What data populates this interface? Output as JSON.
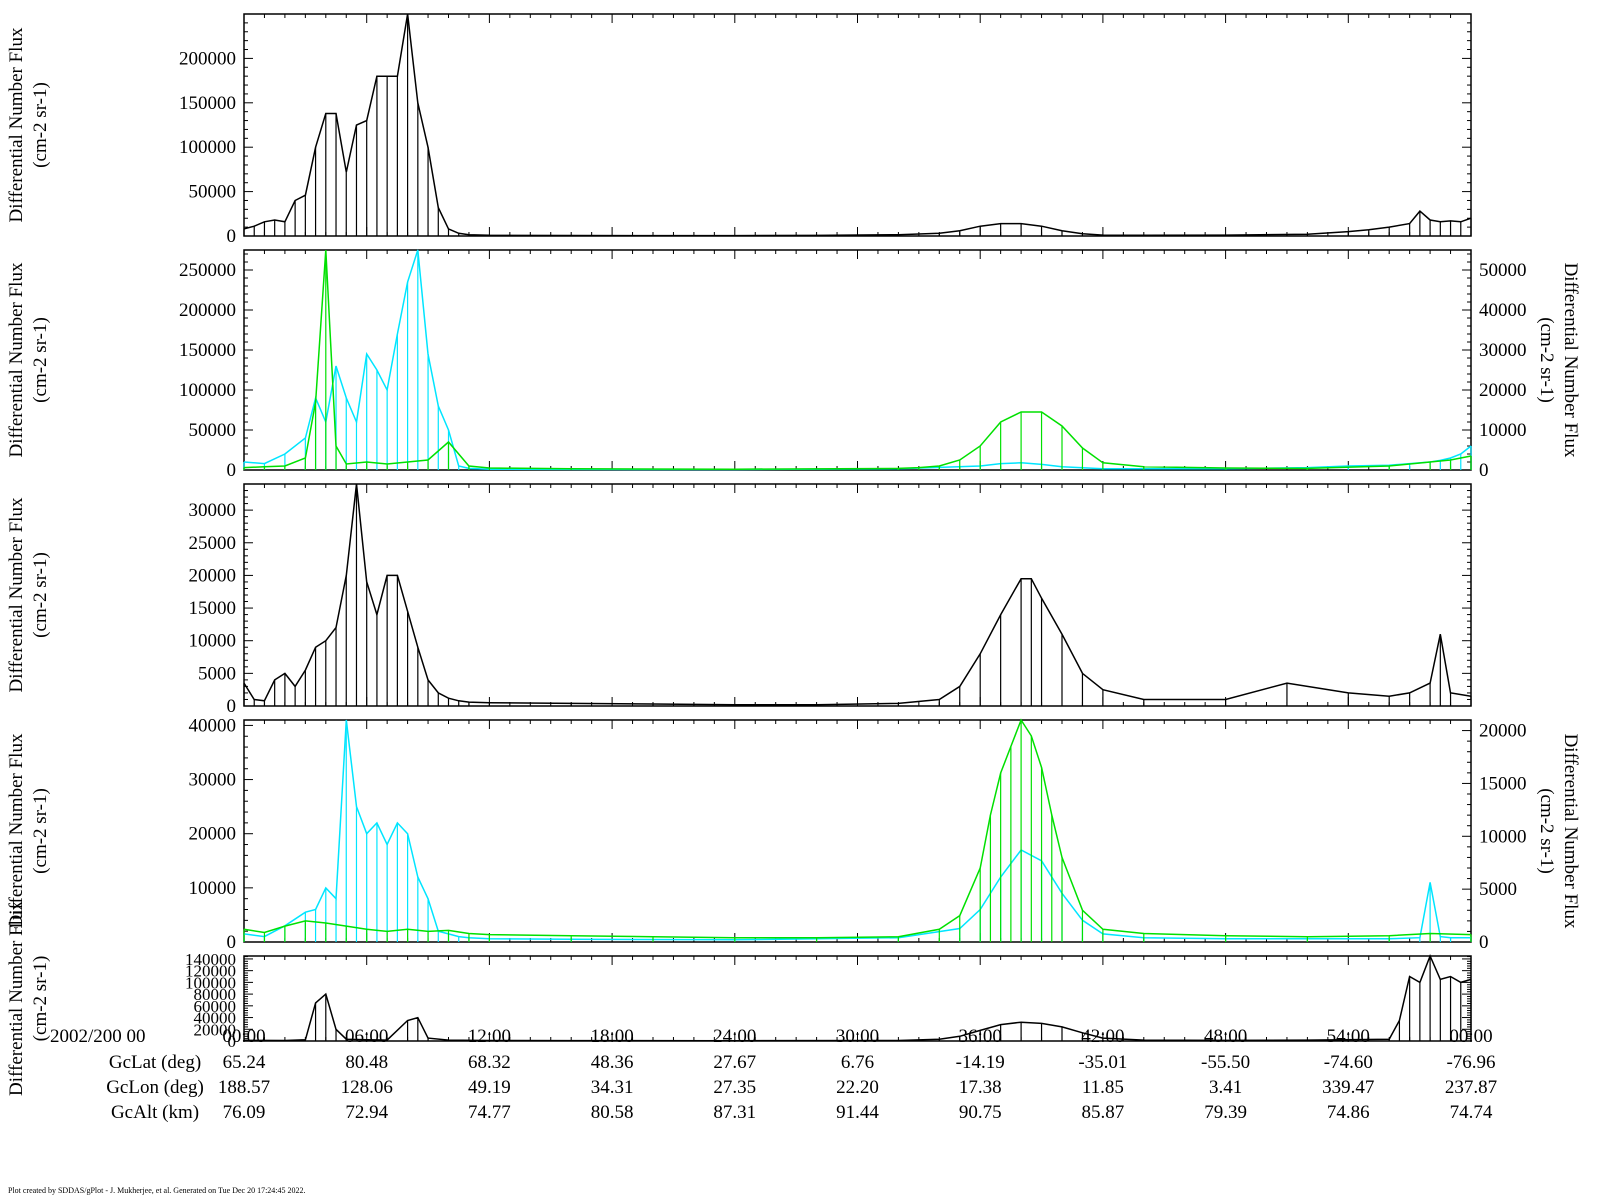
{
  "chart_data": [
    {
      "type": "line",
      "panel": 1,
      "left_axis": {
        "label": "Differential Number Flux",
        "unit_label": "(cm-2 sr-1)",
        "ylim": [
          0,
          250000
        ],
        "ticks": [
          0,
          50000,
          100000,
          150000,
          200000
        ]
      },
      "series": [
        {
          "color": "#000000",
          "axis": "left",
          "x": [
            0.0,
            0.5,
            1.0,
            1.5,
            2.0,
            2.5,
            3.0,
            3.5,
            4.0,
            4.5,
            5.0,
            5.5,
            6.0,
            6.5,
            7.0,
            7.5,
            8.0,
            8.5,
            9.0,
            9.5,
            10.0,
            10.5,
            11.0,
            12.0,
            16.0,
            20.0,
            24.0,
            28.0,
            32.0,
            34.0,
            35.0,
            36.0,
            37.0,
            38.0,
            39.0,
            40.0,
            41.0,
            42.0,
            44.0,
            48.0,
            52.0,
            54.0,
            55.0,
            56.0,
            57.0,
            57.5,
            58.0,
            58.5,
            59.0,
            59.5,
            60.0
          ],
          "y": [
            8000,
            11000,
            16000,
            18000,
            16000,
            40000,
            46000,
            100000,
            138000,
            138000,
            72000,
            125000,
            130000,
            180000,
            180000,
            180000,
            250000,
            150000,
            100000,
            32000,
            8000,
            3000,
            1500,
            800,
            600,
            500,
            500,
            700,
            1500,
            3000,
            6000,
            11000,
            14000,
            14000,
            11000,
            6000,
            2500,
            1000,
            800,
            1000,
            2000,
            5000,
            7000,
            10000,
            14000,
            28000,
            18000,
            16000,
            17000,
            16000,
            20000
          ]
        }
      ]
    },
    {
      "type": "line",
      "panel": 2,
      "left_axis": {
        "label": "Differential Number Flux",
        "unit_label": "(cm-2 sr-1)",
        "ylim": [
          0,
          275000
        ],
        "ticks": [
          0,
          50000,
          100000,
          150000,
          200000,
          250000
        ]
      },
      "right_axis": {
        "label": "Differential Number Flux",
        "unit_label": "(cm-2 sr-1)",
        "ylim": [
          0,
          55000
        ],
        "ticks": [
          0,
          10000,
          20000,
          30000,
          40000,
          50000
        ]
      },
      "series": [
        {
          "color": "#00e5ff",
          "axis": "left",
          "x": [
            0.0,
            1.0,
            2.0,
            3.0,
            3.5,
            4.0,
            4.5,
            5.0,
            5.5,
            6.0,
            6.5,
            7.0,
            7.5,
            8.0,
            8.5,
            9.0,
            9.5,
            10.0,
            10.5,
            11.0,
            12.0,
            16.0,
            24.0,
            32.0,
            36.0,
            37.0,
            38.0,
            39.0,
            40.0,
            42.0,
            48.0,
            52.0,
            54.0,
            56.0,
            57.0,
            58.0,
            58.5,
            59.0,
            59.5,
            60.0
          ],
          "y": [
            10000,
            8000,
            20000,
            40000,
            90000,
            60000,
            130000,
            90000,
            60000,
            145000,
            125000,
            100000,
            170000,
            235000,
            275000,
            145000,
            80000,
            50000,
            5000,
            2000,
            1000,
            800,
            600,
            1500,
            5000,
            8000,
            9000,
            7000,
            4000,
            1500,
            1500,
            3000,
            5000,
            6000,
            8000,
            10000,
            12000,
            15000,
            20000,
            30000
          ]
        },
        {
          "color": "#00e000",
          "axis": "right",
          "x": [
            0.0,
            1.0,
            2.0,
            3.0,
            3.5,
            4.0,
            4.5,
            5.0,
            6.0,
            7.0,
            8.0,
            9.0,
            10.0,
            11.0,
            12.0,
            16.0,
            24.0,
            32.0,
            33.0,
            34.0,
            35.0,
            36.0,
            37.0,
            38.0,
            39.0,
            40.0,
            41.0,
            42.0,
            44.0,
            48.0,
            52.0,
            56.0,
            58.0,
            59.0,
            60.0
          ],
          "y": [
            600,
            800,
            1000,
            3000,
            17000,
            55000,
            6000,
            1500,
            2000,
            1500,
            2000,
            2500,
            7000,
            1000,
            500,
            300,
            200,
            400,
            600,
            1000,
            2500,
            6000,
            12000,
            14500,
            14500,
            11000,
            5500,
            1800,
            800,
            500,
            400,
            1000,
            2000,
            2500,
            3500
          ]
        }
      ]
    },
    {
      "type": "line",
      "panel": 3,
      "left_axis": {
        "label": "Differential Number Flux",
        "unit_label": "(cm-2 sr-1)",
        "ylim": [
          0,
          34000
        ],
        "ticks": [
          0,
          5000,
          10000,
          15000,
          20000,
          25000,
          30000
        ]
      },
      "series": [
        {
          "color": "#000000",
          "axis": "left",
          "x": [
            0.0,
            0.5,
            1.0,
            1.5,
            2.0,
            2.5,
            3.0,
            3.5,
            4.0,
            4.5,
            5.0,
            5.5,
            6.0,
            6.5,
            7.0,
            7.5,
            8.0,
            8.5,
            9.0,
            9.5,
            10.0,
            10.5,
            11.0,
            12.0,
            16.0,
            20.0,
            24.0,
            28.0,
            32.0,
            34.0,
            35.0,
            36.0,
            37.0,
            38.0,
            38.5,
            39.0,
            40.0,
            41.0,
            42.0,
            44.0,
            48.0,
            51.0,
            54.0,
            56.0,
            57.0,
            58.0,
            58.5,
            59.0,
            60.0
          ],
          "y": [
            3500,
            1000,
            800,
            4000,
            5000,
            3000,
            5500,
            9000,
            10000,
            12000,
            20000,
            34000,
            19000,
            14000,
            20000,
            20000,
            14500,
            9000,
            4000,
            2000,
            1200,
            800,
            600,
            500,
            400,
            300,
            200,
            200,
            400,
            1000,
            3000,
            8000,
            14000,
            19500,
            19500,
            16500,
            11000,
            5000,
            2500,
            1000,
            1000,
            3500,
            2000,
            1500,
            2000,
            3500,
            11000,
            2000,
            1500
          ]
        }
      ]
    },
    {
      "type": "line",
      "panel": 4,
      "left_axis": {
        "label": "Differential Number Flux",
        "unit_label": "(cm-2 sr-1)",
        "ylim": [
          0,
          41000
        ],
        "ticks": [
          0,
          10000,
          20000,
          30000,
          40000
        ]
      },
      "right_axis": {
        "label": "Differential Number Flux",
        "unit_label": "(cm-2 sr-1)",
        "ylim": [
          0,
          21000
        ],
        "ticks": [
          0,
          5000,
          10000,
          15000,
          20000
        ]
      },
      "series": [
        {
          "color": "#00e5ff",
          "axis": "left",
          "x": [
            0.0,
            1.0,
            2.0,
            3.0,
            3.5,
            4.0,
            4.5,
            5.0,
            5.5,
            6.0,
            6.5,
            7.0,
            7.5,
            8.0,
            8.5,
            9.0,
            9.5,
            10.0,
            10.5,
            11.0,
            12.0,
            16.0,
            24.0,
            32.0,
            35.0,
            36.0,
            37.0,
            38.0,
            39.0,
            40.0,
            41.0,
            42.0,
            44.0,
            48.0,
            52.0,
            56.0,
            57.5,
            58.0,
            58.5,
            59.0,
            60.0
          ],
          "y": [
            1500,
            1000,
            3000,
            5500,
            6000,
            10000,
            8000,
            41000,
            25000,
            20000,
            22000,
            18000,
            22000,
            20000,
            12000,
            8000,
            2000,
            1500,
            1000,
            800,
            600,
            500,
            400,
            800,
            2500,
            6000,
            12000,
            17000,
            15000,
            9000,
            4000,
            1500,
            800,
            600,
            600,
            600,
            800,
            11000,
            1000,
            800,
            800
          ]
        },
        {
          "color": "#00e000",
          "axis": "right",
          "x": [
            0.0,
            1.0,
            2.0,
            3.0,
            4.0,
            5.0,
            6.0,
            7.0,
            8.0,
            9.0,
            10.0,
            11.0,
            12.0,
            16.0,
            20.0,
            24.0,
            28.0,
            32.0,
            34.0,
            35.0,
            36.0,
            36.5,
            37.0,
            37.5,
            38.0,
            38.5,
            39.0,
            39.5,
            40.0,
            41.0,
            42.0,
            44.0,
            48.0,
            52.0,
            56.0,
            58.0,
            60.0
          ],
          "y": [
            1200,
            900,
            1500,
            2000,
            1800,
            1500,
            1200,
            1000,
            1200,
            1000,
            1100,
            800,
            700,
            600,
            500,
            400,
            400,
            500,
            1200,
            2500,
            7000,
            12000,
            16000,
            18500,
            21000,
            19500,
            16500,
            12000,
            8000,
            3000,
            1200,
            800,
            600,
            500,
            600,
            800,
            700
          ]
        }
      ]
    },
    {
      "type": "line",
      "panel": 5,
      "left_axis": {
        "label": "Differential Number Flux",
        "unit_label": "(cm-2 sr-1)",
        "ylim": [
          0,
          145000
        ],
        "ticks": [
          0,
          20000,
          40000,
          60000,
          80000,
          100000,
          120000,
          140000
        ]
      },
      "series": [
        {
          "color": "#000000",
          "axis": "left",
          "x": [
            0.0,
            2.0,
            3.0,
            3.5,
            4.0,
            4.5,
            5.0,
            6.0,
            7.0,
            8.0,
            8.5,
            9.0,
            10.0,
            12.0,
            16.0,
            24.0,
            32.0,
            34.0,
            35.0,
            36.0,
            37.0,
            38.0,
            39.0,
            40.0,
            41.0,
            42.0,
            44.0,
            48.0,
            52.0,
            56.0,
            56.5,
            57.0,
            57.5,
            58.0,
            58.5,
            59.0,
            59.5,
            60.0
          ],
          "y": [
            1000,
            800,
            2000,
            65000,
            80000,
            20000,
            3000,
            2000,
            1500,
            35000,
            40000,
            5000,
            1500,
            800,
            600,
            500,
            800,
            3000,
            8000,
            18000,
            28000,
            32000,
            30000,
            24000,
            14000,
            5000,
            1500,
            1000,
            1500,
            3000,
            35000,
            110000,
            100000,
            145000,
            105000,
            110000,
            100000,
            105000
          ]
        }
      ]
    }
  ],
  "x_axis": {
    "start_label": "2002/200 00",
    "ticks": [
      "00:00",
      "06:00",
      "12:00",
      "18:00",
      "24:00",
      "30:00",
      "36:00",
      "42:00",
      "48:00",
      "54:00",
      "00:00"
    ],
    "tick_values": [
      0,
      6,
      12,
      18,
      24,
      30,
      36,
      42,
      48,
      54,
      60
    ]
  },
  "ephemeris": [
    {
      "label": "GcLat (deg)",
      "values": [
        "65.24",
        "80.48",
        "68.32",
        "48.36",
        "27.67",
        "6.76",
        "-14.19",
        "-35.01",
        "-55.50",
        "-74.60",
        "-76.96"
      ]
    },
    {
      "label": "GcLon (deg)",
      "values": [
        "188.57",
        "128.06",
        "49.19",
        "34.31",
        "27.35",
        "22.20",
        "17.38",
        "11.85",
        "3.41",
        "339.47",
        "237.87"
      ]
    },
    {
      "label": "GcAlt (km)",
      "values": [
        "76.09",
        "72.94",
        "74.77",
        "80.58",
        "87.31",
        "91.44",
        "90.75",
        "85.87",
        "79.39",
        "74.86",
        "74.74"
      ]
    }
  ],
  "footer": "Plot created by SDDAS/gPlot - J. Mukherjee, et al.  Generated on Tue Dec 20 17:24:45 2022."
}
